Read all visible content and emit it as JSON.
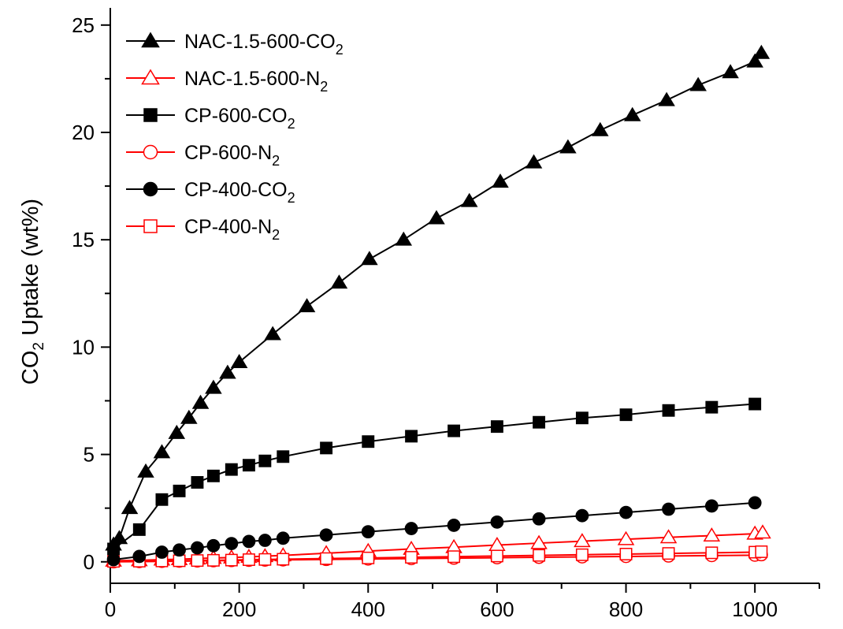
{
  "chart_data": {
    "type": "line",
    "title": "",
    "xlabel": "",
    "ylabel": {
      "base": "CO",
      "sub": "2",
      "rest": " Uptake (wt%)"
    },
    "xlim": [
      0,
      1100
    ],
    "ylim": [
      -1,
      25.8
    ],
    "xticks": [
      0,
      200,
      400,
      600,
      800,
      1000
    ],
    "yticks": [
      0,
      5,
      10,
      15,
      20,
      25
    ],
    "grid": false,
    "legend_position": "top-left",
    "series": [
      {
        "name": {
          "base": "NAC-1.5-600-CO",
          "sub": "2"
        },
        "color": "#000000",
        "marker": "triangle",
        "filled": true,
        "x": [
          5,
          14,
          30,
          55,
          80,
          103,
          122,
          140,
          160,
          182,
          200,
          252,
          305,
          355,
          402,
          455,
          506,
          557,
          605,
          657,
          710,
          760,
          810,
          863,
          912,
          962,
          1000,
          1010
        ],
        "y": [
          0.8,
          1.1,
          2.5,
          4.2,
          5.1,
          6.0,
          6.7,
          7.4,
          8.1,
          8.8,
          9.3,
          10.6,
          11.9,
          13.0,
          14.1,
          15.0,
          16.0,
          16.8,
          17.7,
          18.6,
          19.3,
          20.1,
          20.8,
          21.5,
          22.2,
          22.8,
          23.3,
          23.7
        ]
      },
      {
        "name": {
          "base": "NAC-1.5-600-N",
          "sub": "2"
        },
        "color": "#ff0000",
        "marker": "triangle",
        "filled": false,
        "x": [
          5,
          45,
          80,
          107,
          135,
          160,
          188,
          215,
          240,
          268,
          335,
          400,
          467,
          533,
          600,
          665,
          732,
          800,
          866,
          933,
          1000,
          1012
        ],
        "y": [
          0.05,
          0.07,
          0.1,
          0.12,
          0.15,
          0.18,
          0.2,
          0.23,
          0.26,
          0.3,
          0.4,
          0.5,
          0.6,
          0.68,
          0.78,
          0.87,
          0.96,
          1.05,
          1.14,
          1.22,
          1.31,
          1.36
        ]
      },
      {
        "name": {
          "base": "CP-600-CO",
          "sub": "2"
        },
        "color": "#000000",
        "marker": "square",
        "filled": true,
        "x": [
          5,
          45,
          80,
          107,
          135,
          160,
          188,
          215,
          240,
          268,
          335,
          400,
          467,
          533,
          600,
          665,
          732,
          800,
          866,
          933,
          1000
        ],
        "y": [
          0.6,
          1.5,
          2.9,
          3.3,
          3.7,
          4.0,
          4.3,
          4.5,
          4.7,
          4.9,
          5.3,
          5.6,
          5.85,
          6.1,
          6.3,
          6.5,
          6.7,
          6.85,
          7.05,
          7.2,
          7.35
        ]
      },
      {
        "name": {
          "base": "CP-600-N",
          "sub": "2"
        },
        "color": "#ff0000",
        "marker": "circle",
        "filled": false,
        "x": [
          5,
          45,
          80,
          107,
          135,
          160,
          188,
          215,
          240,
          268,
          335,
          400,
          467,
          533,
          600,
          665,
          732,
          800,
          866,
          933,
          1000,
          1010
        ],
        "y": [
          0.0,
          0.01,
          0.02,
          0.03,
          0.04,
          0.05,
          0.06,
          0.07,
          0.08,
          0.09,
          0.11,
          0.13,
          0.15,
          0.17,
          0.19,
          0.21,
          0.23,
          0.25,
          0.27,
          0.29,
          0.31,
          0.33
        ]
      },
      {
        "name": {
          "base": "CP-400-CO",
          "sub": "2"
        },
        "color": "#000000",
        "marker": "circle",
        "filled": true,
        "x": [
          5,
          45,
          80,
          107,
          135,
          160,
          188,
          215,
          240,
          268,
          335,
          400,
          467,
          533,
          600,
          665,
          732,
          800,
          866,
          933,
          1000
        ],
        "y": [
          0.1,
          0.25,
          0.45,
          0.55,
          0.65,
          0.75,
          0.85,
          0.95,
          1.0,
          1.1,
          1.25,
          1.4,
          1.55,
          1.7,
          1.85,
          2.0,
          2.15,
          2.3,
          2.45,
          2.6,
          2.75
        ]
      },
      {
        "name": {
          "base": "CP-400-N",
          "sub": "2"
        },
        "color": "#ff0000",
        "marker": "square",
        "filled": false,
        "x": [
          5,
          45,
          80,
          107,
          135,
          160,
          188,
          215,
          240,
          268,
          335,
          400,
          467,
          533,
          600,
          665,
          732,
          800,
          866,
          933,
          1000,
          1010
        ],
        "y": [
          0.02,
          0.03,
          0.04,
          0.05,
          0.06,
          0.07,
          0.08,
          0.1,
          0.11,
          0.12,
          0.15,
          0.18,
          0.21,
          0.24,
          0.27,
          0.3,
          0.33,
          0.36,
          0.39,
          0.42,
          0.45,
          0.47
        ]
      }
    ]
  }
}
